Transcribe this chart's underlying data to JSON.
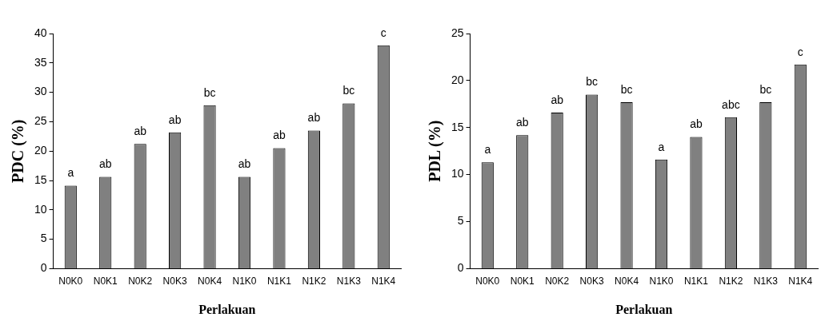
{
  "chart_data": [
    {
      "type": "bar",
      "xlabel": "Perlakuan",
      "ylabel": "PDC (%)",
      "categories": [
        "N0K0",
        "N0K1",
        "N0K2",
        "N0K3",
        "N0K4",
        "N1K0",
        "N1K1",
        "N1K2",
        "N1K3",
        "N1K4"
      ],
      "values": [
        14.1,
        15.6,
        21.2,
        23.2,
        27.8,
        15.6,
        20.5,
        23.5,
        28.1,
        38.0
      ],
      "color": "#808080",
      "ylim": [
        0,
        40
      ],
      "yticks": [
        0,
        5,
        10,
        15,
        20,
        25,
        30,
        35,
        40
      ],
      "grid": false,
      "legend": false,
      "annotations": [
        {
          "text": "a",
          "x": "N0K0",
          "y": 14.1
        },
        {
          "text": "ab",
          "x": "N0K1",
          "y": 15.6
        },
        {
          "text": "ab",
          "x": "N0K2",
          "y": 21.2
        },
        {
          "text": "ab",
          "x": "N0K3",
          "y": 23.2
        },
        {
          "text": "bc",
          "x": "N0K4",
          "y": 27.8
        },
        {
          "text": "ab",
          "x": "N1K0",
          "y": 15.6
        },
        {
          "text": "ab",
          "x": "N1K1",
          "y": 20.5
        },
        {
          "text": "ab",
          "x": "N1K2",
          "y": 23.5
        },
        {
          "text": "bc",
          "x": "N1K3",
          "y": 28.1
        },
        {
          "text": "c",
          "x": "N1K4",
          "y": 38.0
        }
      ]
    },
    {
      "type": "bar",
      "xlabel": "Perlakuan",
      "ylabel": "PDL (%)",
      "categories": [
        "N0K0",
        "N0K1",
        "N0K2",
        "N0K3",
        "N0K4",
        "N1K0",
        "N1K1",
        "N1K2",
        "N1K3",
        "N1K4"
      ],
      "values": [
        11.3,
        14.2,
        16.6,
        18.5,
        17.7,
        11.6,
        14.0,
        16.1,
        17.7,
        21.7
      ],
      "color": "#808080",
      "ylim": [
        0,
        25
      ],
      "yticks": [
        0,
        5,
        10,
        15,
        20,
        25
      ],
      "grid": false,
      "legend": false,
      "annotations": [
        {
          "text": "a",
          "x": "N0K0",
          "y": 11.3
        },
        {
          "text": "ab",
          "x": "N0K1",
          "y": 14.2
        },
        {
          "text": "ab",
          "x": "N0K2",
          "y": 16.6
        },
        {
          "text": "bc",
          "x": "N0K3",
          "y": 18.5
        },
        {
          "text": "bc",
          "x": "N0K4",
          "y": 17.7
        },
        {
          "text": "a",
          "x": "N1K0",
          "y": 11.6
        },
        {
          "text": "ab",
          "x": "N1K1",
          "y": 14.0
        },
        {
          "text": "abc",
          "x": "N1K2",
          "y": 16.1
        },
        {
          "text": "bc",
          "x": "N1K3",
          "y": 17.7
        },
        {
          "text": "c",
          "x": "N1K4",
          "y": 21.7
        }
      ]
    }
  ]
}
